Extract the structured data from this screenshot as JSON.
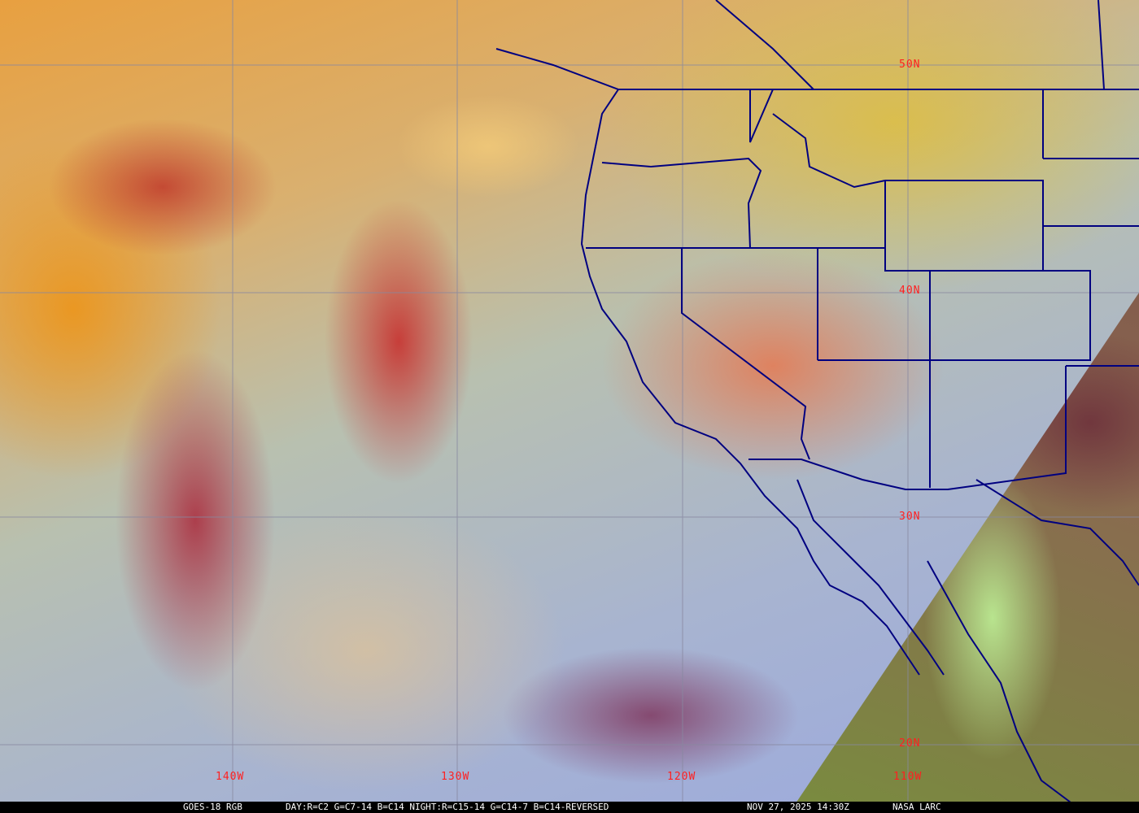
{
  "image": {
    "type": "satellite-rgb-composite",
    "colors": {
      "grid": "#8888a0",
      "borders": "#000080",
      "labels": "#ff2020",
      "caption_bg": "#000000",
      "caption_text": "#ffffff"
    }
  },
  "grid_labels": {
    "latitudes": [
      "50N",
      "40N",
      "30N",
      "20N"
    ],
    "longitudes": [
      "140W",
      "130W",
      "120W",
      "110W"
    ]
  },
  "caption": {
    "product": "GOES-18 RGB",
    "recipe": "DAY:R=C2 G=C7-14 B=C14 NIGHT:R=C15-14 G=C14-7 B=C14-REVERSED",
    "timestamp": "NOV 27, 2025 14:30Z",
    "credit": "NASA LARC"
  }
}
